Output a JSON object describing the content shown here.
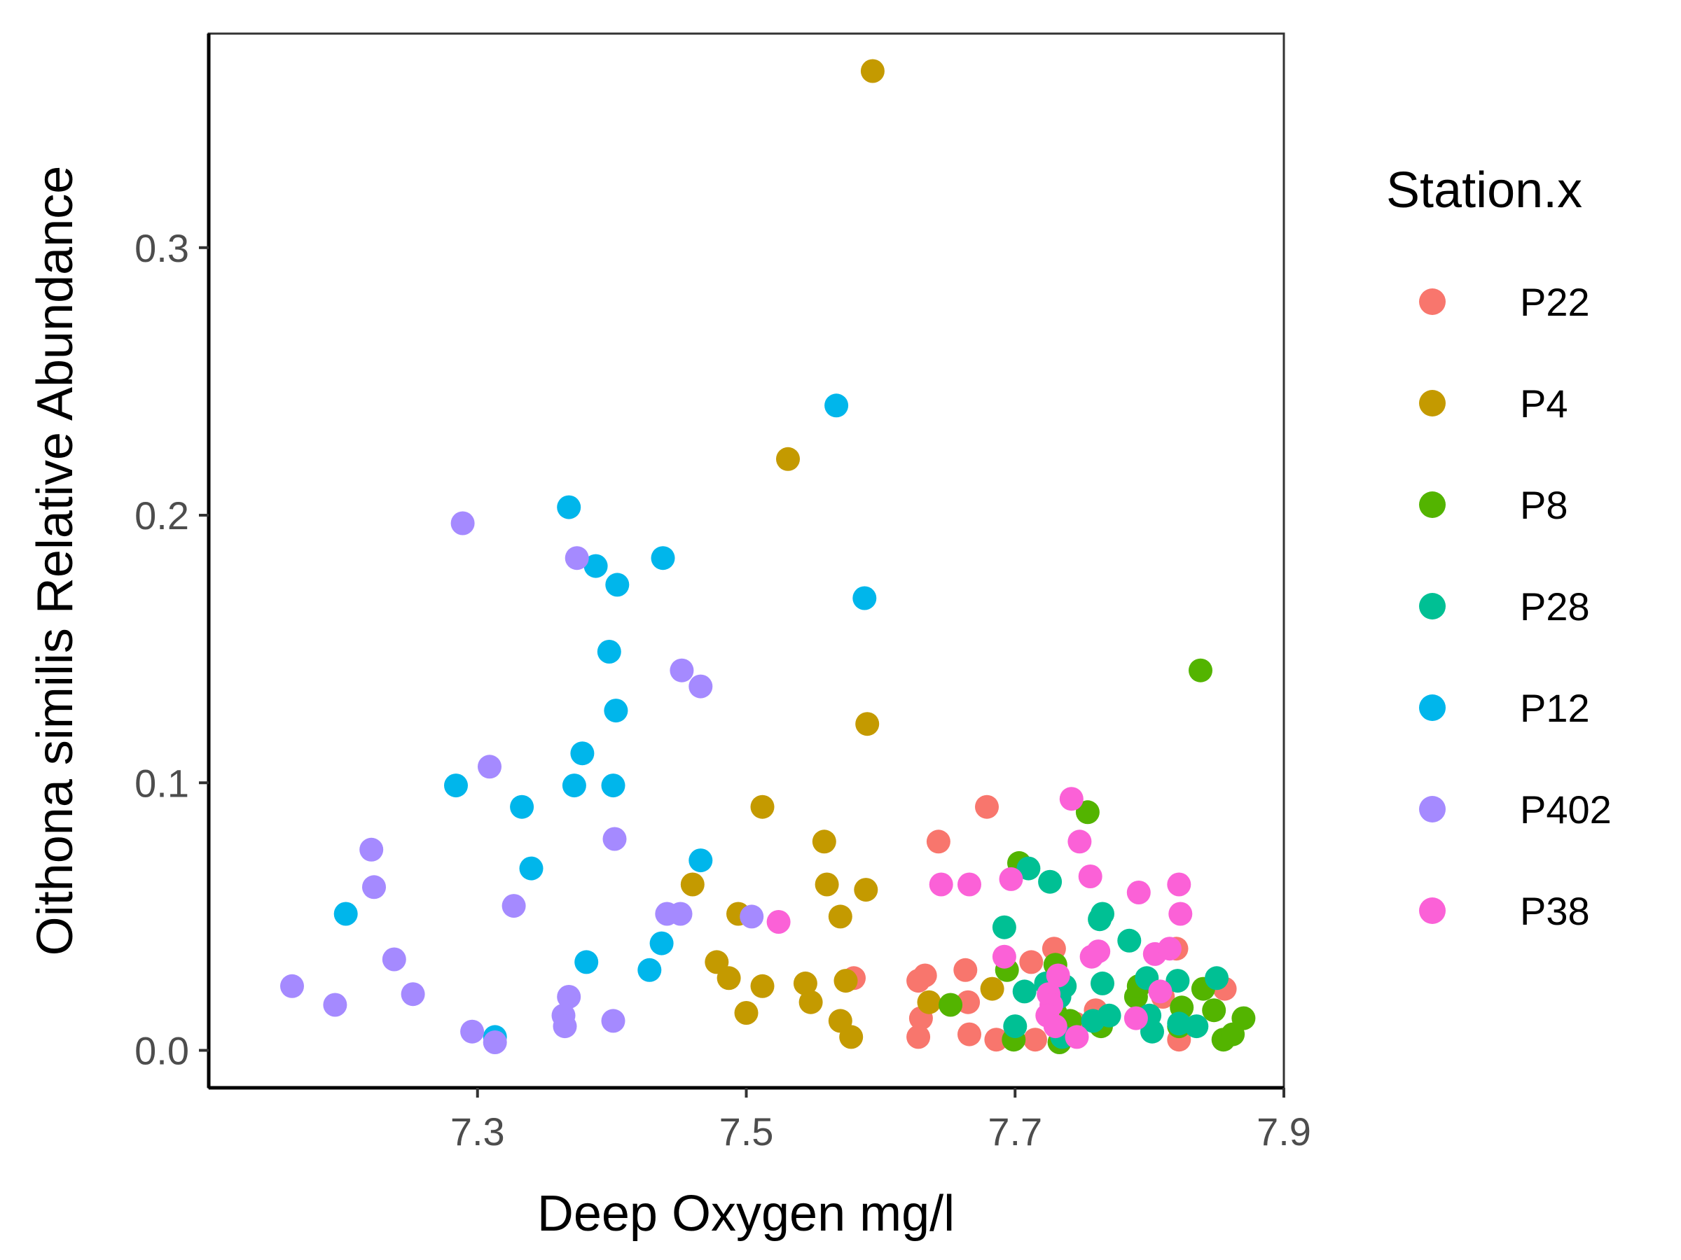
{
  "chart_data": {
    "type": "scatter",
    "xlabel": "Deep Oxygen mg/l",
    "ylabel": "Oithona similis Relative Abundance",
    "xlim": [
      7.1,
      7.9
    ],
    "ylim": [
      -0.014,
      0.38
    ],
    "xticks": [
      7.3,
      7.5,
      7.7,
      7.9
    ],
    "xtick_labels": [
      "7.3",
      "7.5",
      "7.7",
      "7.9"
    ],
    "yticks": [
      0.0,
      0.1,
      0.2,
      0.3
    ],
    "ytick_labels": [
      "0.0",
      "0.1",
      "0.2",
      "0.3"
    ],
    "grid": false,
    "legend": {
      "title": "Station.x",
      "position": "right"
    },
    "series": [
      {
        "name": "P22",
        "color": "#F8766D",
        "points": [
          [
            7.643,
            0.078
          ],
          [
            7.679,
            0.091
          ],
          [
            7.58,
            0.027
          ],
          [
            7.628,
            0.026
          ],
          [
            7.633,
            0.028
          ],
          [
            7.63,
            0.012
          ],
          [
            7.628,
            0.005
          ],
          [
            7.663,
            0.03
          ],
          [
            7.665,
            0.018
          ],
          [
            7.666,
            0.006
          ],
          [
            7.686,
            0.004
          ],
          [
            7.712,
            0.033
          ],
          [
            7.729,
            0.038
          ],
          [
            7.715,
            0.004
          ],
          [
            7.745,
            0.01
          ],
          [
            7.76,
            0.015
          ],
          [
            7.82,
            0.038
          ],
          [
            7.822,
            0.004
          ],
          [
            7.856,
            0.023
          ],
          [
            7.81,
            0.02
          ]
        ]
      },
      {
        "name": "P4",
        "color": "#C49A00",
        "points": [
          [
            7.594,
            0.366
          ],
          [
            7.531,
            0.221
          ],
          [
            7.59,
            0.122
          ],
          [
            7.512,
            0.091
          ],
          [
            7.558,
            0.078
          ],
          [
            7.46,
            0.062
          ],
          [
            7.56,
            0.062
          ],
          [
            7.589,
            0.06
          ],
          [
            7.57,
            0.05
          ],
          [
            7.494,
            0.051
          ],
          [
            7.478,
            0.033
          ],
          [
            7.487,
            0.027
          ],
          [
            7.512,
            0.024
          ],
          [
            7.544,
            0.025
          ],
          [
            7.548,
            0.018
          ],
          [
            7.574,
            0.026
          ],
          [
            7.5,
            0.014
          ],
          [
            7.57,
            0.011
          ],
          [
            7.578,
            0.005
          ],
          [
            7.636,
            0.018
          ],
          [
            7.683,
            0.023
          ]
        ]
      },
      {
        "name": "P8",
        "color": "#53B400",
        "points": [
          [
            7.838,
            0.142
          ],
          [
            7.754,
            0.089
          ],
          [
            7.703,
            0.07
          ],
          [
            7.694,
            0.03
          ],
          [
            7.73,
            0.032
          ],
          [
            7.652,
            0.017
          ],
          [
            7.699,
            0.004
          ],
          [
            7.733,
            0.003
          ],
          [
            7.741,
            0.011
          ],
          [
            7.764,
            0.009
          ],
          [
            7.79,
            0.02
          ],
          [
            7.792,
            0.024
          ],
          [
            7.822,
            0.009
          ],
          [
            7.824,
            0.016
          ],
          [
            7.84,
            0.023
          ],
          [
            7.848,
            0.015
          ],
          [
            7.855,
            0.004
          ],
          [
            7.862,
            0.006
          ],
          [
            7.87,
            0.012
          ],
          [
            7.73,
            0.014
          ]
        ]
      },
      {
        "name": "P28",
        "color": "#00C094",
        "points": [
          [
            7.71,
            0.068
          ],
          [
            7.726,
            0.063
          ],
          [
            7.692,
            0.046
          ],
          [
            7.765,
            0.051
          ],
          [
            7.763,
            0.049
          ],
          [
            7.785,
            0.041
          ],
          [
            7.798,
            0.027
          ],
          [
            7.821,
            0.026
          ],
          [
            7.85,
            0.027
          ],
          [
            7.765,
            0.025
          ],
          [
            7.737,
            0.024
          ],
          [
            7.723,
            0.025
          ],
          [
            7.707,
            0.022
          ],
          [
            7.7,
            0.009
          ],
          [
            7.733,
            0.02
          ],
          [
            7.758,
            0.011
          ],
          [
            7.77,
            0.013
          ],
          [
            7.8,
            0.013
          ],
          [
            7.802,
            0.007
          ],
          [
            7.835,
            0.009
          ],
          [
            7.735,
            0.005
          ],
          [
            7.822,
            0.01
          ]
        ]
      },
      {
        "name": "P12",
        "color": "#00B6EB",
        "points": [
          [
            7.567,
            0.241
          ],
          [
            7.368,
            0.203
          ],
          [
            7.438,
            0.184
          ],
          [
            7.388,
            0.181
          ],
          [
            7.404,
            0.174
          ],
          [
            7.588,
            0.169
          ],
          [
            7.398,
            0.149
          ],
          [
            7.403,
            0.127
          ],
          [
            7.378,
            0.111
          ],
          [
            7.284,
            0.099
          ],
          [
            7.372,
            0.099
          ],
          [
            7.401,
            0.099
          ],
          [
            7.333,
            0.091
          ],
          [
            7.34,
            0.068
          ],
          [
            7.466,
            0.071
          ],
          [
            7.202,
            0.051
          ],
          [
            7.437,
            0.04
          ],
          [
            7.428,
            0.03
          ],
          [
            7.381,
            0.033
          ],
          [
            7.313,
            0.005
          ]
        ]
      },
      {
        "name": "P402",
        "color": "#A58AFF",
        "points": [
          [
            7.289,
            0.197
          ],
          [
            7.374,
            0.184
          ],
          [
            7.452,
            0.142
          ],
          [
            7.466,
            0.136
          ],
          [
            7.309,
            0.106
          ],
          [
            7.402,
            0.079
          ],
          [
            7.221,
            0.075
          ],
          [
            7.223,
            0.061
          ],
          [
            7.327,
            0.054
          ],
          [
            7.441,
            0.051
          ],
          [
            7.451,
            0.051
          ],
          [
            7.504,
            0.05
          ],
          [
            7.238,
            0.034
          ],
          [
            7.252,
            0.021
          ],
          [
            7.162,
            0.024
          ],
          [
            7.194,
            0.017
          ],
          [
            7.368,
            0.02
          ],
          [
            7.364,
            0.013
          ],
          [
            7.365,
            0.009
          ],
          [
            7.296,
            0.007
          ],
          [
            7.313,
            0.003
          ],
          [
            7.401,
            0.011
          ]
        ]
      },
      {
        "name": "P38",
        "color": "#FB61D7",
        "points": [
          [
            7.742,
            0.094
          ],
          [
            7.748,
            0.078
          ],
          [
            7.756,
            0.065
          ],
          [
            7.697,
            0.064
          ],
          [
            7.645,
            0.062
          ],
          [
            7.666,
            0.062
          ],
          [
            7.792,
            0.059
          ],
          [
            7.822,
            0.062
          ],
          [
            7.823,
            0.051
          ],
          [
            7.524,
            0.048
          ],
          [
            7.692,
            0.035
          ],
          [
            7.757,
            0.035
          ],
          [
            7.762,
            0.037
          ],
          [
            7.804,
            0.036
          ],
          [
            7.815,
            0.038
          ],
          [
            7.732,
            0.028
          ],
          [
            7.725,
            0.021
          ],
          [
            7.727,
            0.017
          ],
          [
            7.724,
            0.013
          ],
          [
            7.808,
            0.022
          ],
          [
            7.79,
            0.012
          ],
          [
            7.746,
            0.005
          ],
          [
            7.73,
            0.009
          ]
        ]
      }
    ]
  }
}
